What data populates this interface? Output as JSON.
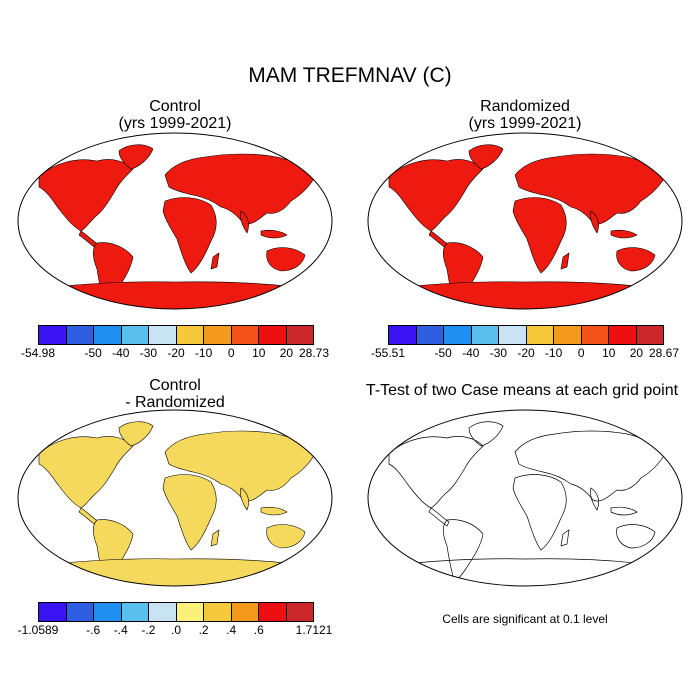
{
  "title": "MAM TREFMNAV (C)",
  "panels": {
    "control": {
      "title_line1": "Control",
      "title_line2": "(yrs 1999-2021)"
    },
    "randomized": {
      "title_line1": "Randomized",
      "title_line2": "(yrs 1999-2021)"
    },
    "difference": {
      "title_line1": "Control",
      "title_line2": "- Randomized"
    },
    "ttest": {
      "title": "T-Test of two Case means at each grid point",
      "note": "Cells are significant at 0.1 level"
    }
  },
  "colorbars": {
    "control": {
      "colors": [
        "#3b12f2",
        "#2f5ee0",
        "#1f8ff2",
        "#5bbfee",
        "#c8e4f4",
        "#f5c93a",
        "#f39a1d",
        "#f5531a",
        "#ee1010",
        "#c9272a"
      ],
      "labels": [
        "-54.98",
        "-50",
        "-40",
        "-30",
        "-20",
        "-10",
        "0",
        "10",
        "20",
        "28.73"
      ]
    },
    "randomized": {
      "colors": [
        "#3b12f2",
        "#2f5ee0",
        "#1f8ff2",
        "#5bbfee",
        "#c8e4f4",
        "#f5c93a",
        "#f39a1d",
        "#f5531a",
        "#ee1010",
        "#c9272a"
      ],
      "labels": [
        "-55.51",
        "-50",
        "-40",
        "-30",
        "-20",
        "-10",
        "0",
        "10",
        "20",
        "28.67"
      ]
    },
    "difference": {
      "colors": [
        "#3b12f2",
        "#2f5ee0",
        "#1f8ff2",
        "#5bbfee",
        "#c8e4f4",
        "#fbf17a",
        "#f5c93a",
        "#f39a1d",
        "#ee1010",
        "#c9272a"
      ],
      "labels": [
        "-1.0589",
        "-.6",
        "-.4",
        "-.2",
        ".0",
        ".2",
        ".4",
        ".6",
        "1.7121"
      ]
    }
  },
  "map_colors": {
    "control": {
      "tropics": "#d42a26",
      "subtropics": "#ee1a10",
      "midlat": "#f39a1d",
      "highlat": "#f5c93a",
      "arctic": "#c8e4f4",
      "ice": "#2f5ee0",
      "ice_edge": "#5bbfee"
    },
    "difference": {
      "base": "#f5d95c",
      "warm": "#f39a1d",
      "hot": "#e8331a",
      "cool": "#8ec9ee",
      "cold": "#2f5ee0"
    },
    "significant": "#ee0a0a"
  }
}
